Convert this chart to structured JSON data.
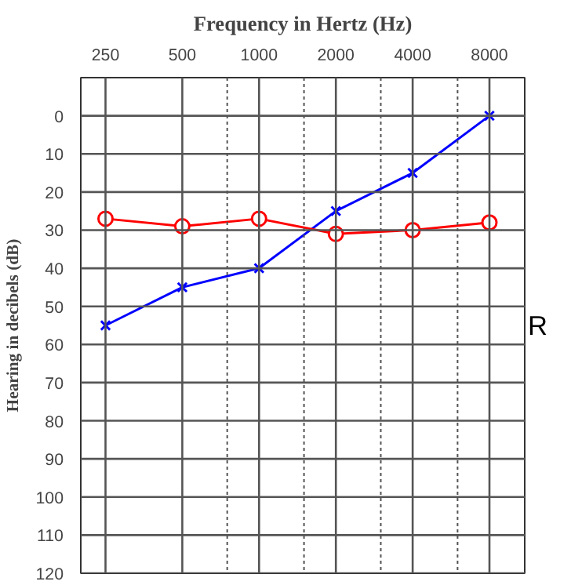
{
  "chart_data": {
    "type": "line",
    "title": "Frequency in Hertz (Hz)",
    "ylabel": "Hearing in decibels (dB)",
    "x": [
      250,
      500,
      1000,
      2000,
      4000,
      8000
    ],
    "series": [
      {
        "color": "#0000ff",
        "marker": "cross",
        "values": [
          55,
          45,
          40,
          25,
          15,
          0
        ]
      },
      {
        "color": "#ff0000",
        "marker": "circle",
        "values": [
          27,
          29,
          27,
          31,
          30,
          28
        ]
      }
    ],
    "log": "x",
    "xlim": [
      200,
      11000
    ],
    "xticks": [
      250,
      500,
      {
        "value": 750,
        "label": null
      },
      1000,
      {
        "value": 1500,
        "label": null
      },
      2000,
      {
        "value": 3000,
        "label": null
      },
      4000,
      {
        "value": 6000,
        "label": null
      },
      8000
    ],
    "ylim": [
      120,
      -10
    ],
    "yticks": [
      0,
      10,
      20,
      30,
      40,
      50,
      60,
      70,
      80,
      90,
      100,
      110,
      120
    ],
    "grid": true,
    "annotations": [
      "R"
    ]
  }
}
